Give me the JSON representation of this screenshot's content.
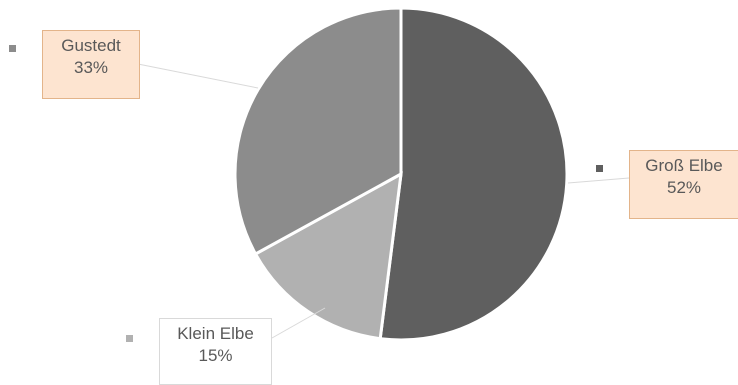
{
  "chart_data": {
    "type": "pie",
    "title": "",
    "slices": [
      {
        "label": "Groß Elbe",
        "value": 52,
        "display": "52%",
        "color": "#5f5f5f"
      },
      {
        "label": "Klein Elbe",
        "value": 15,
        "display": "15%",
        "color": "#b1b1b1"
      },
      {
        "label": "Gustedt",
        "value": 33,
        "display": "33%",
        "color": "#8c8c8c"
      }
    ],
    "legend": "none",
    "data_labels": "callouts"
  }
}
